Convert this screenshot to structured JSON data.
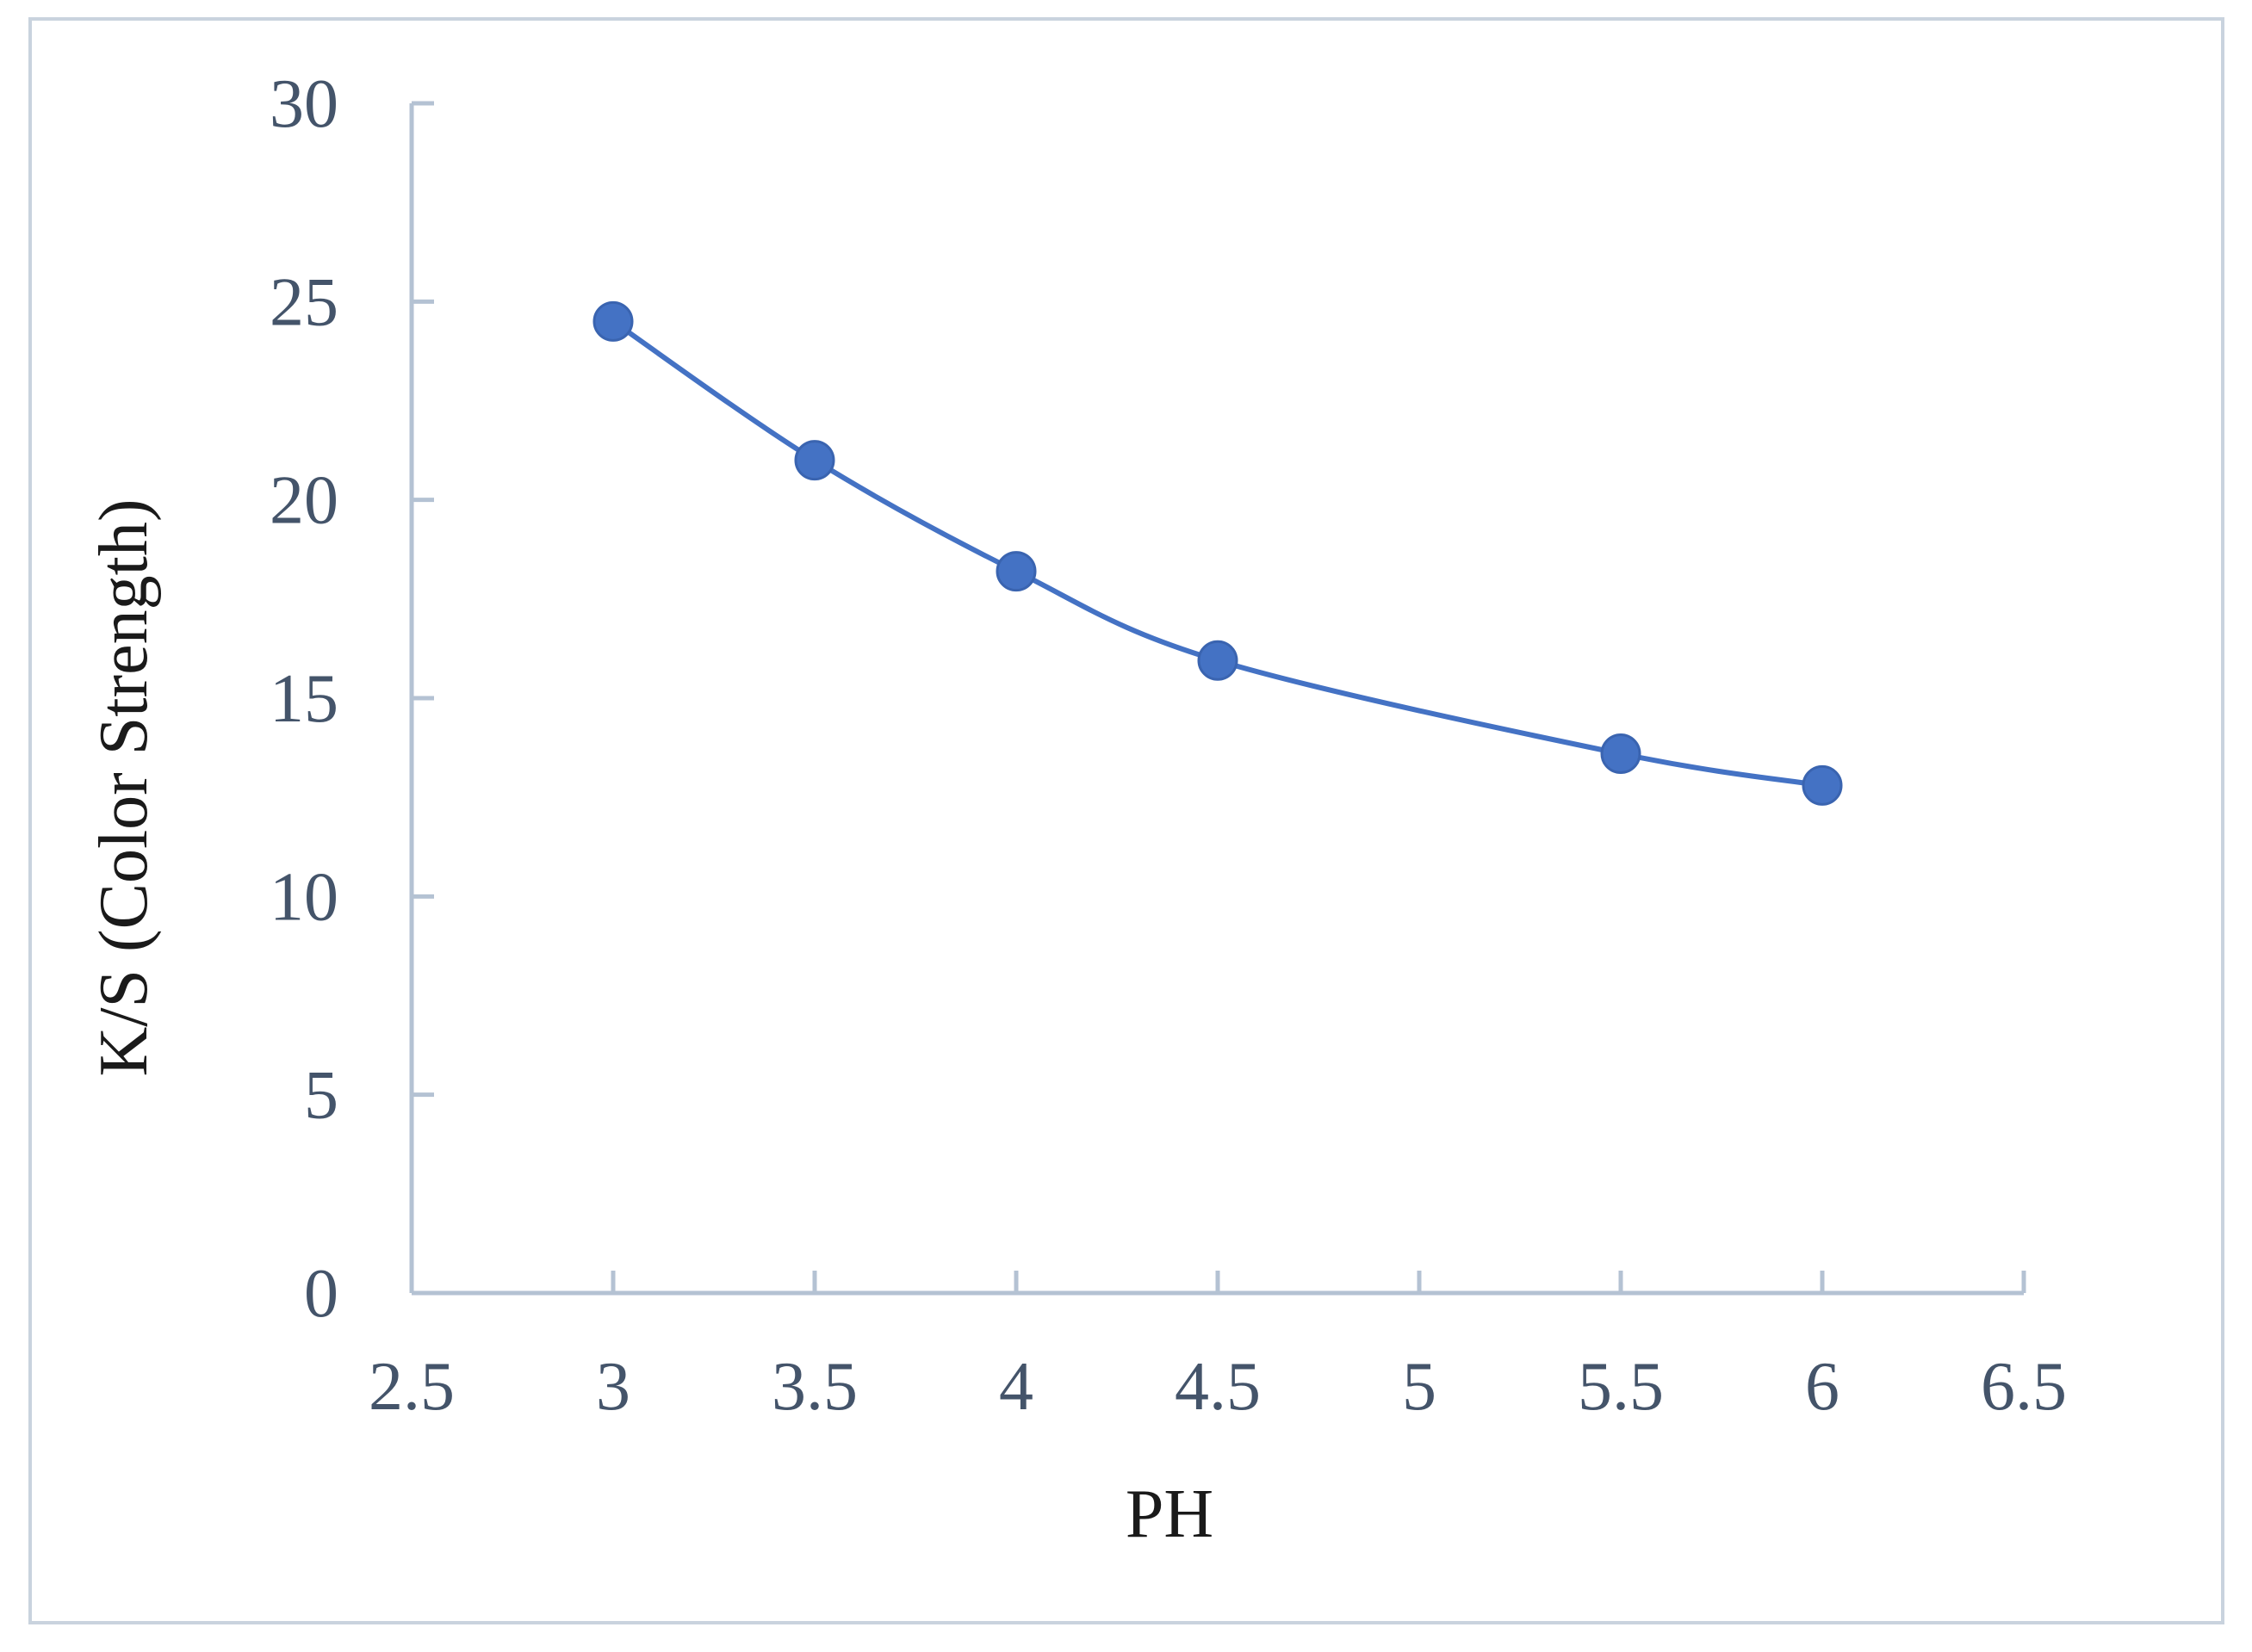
{
  "chart_data": {
    "type": "scatter",
    "title": "",
    "xlabel": "PH",
    "ylabel": "K/S (Color Strength)",
    "xlim": [
      2.5,
      6.5
    ],
    "ylim": [
      0,
      30
    ],
    "x_ticks": [
      "2.5",
      "3",
      "3.5",
      "4",
      "4.5",
      "5",
      "5.5",
      "6",
      "6.5"
    ],
    "y_ticks": [
      "0",
      "5",
      "10",
      "15",
      "20",
      "25",
      "30"
    ],
    "grid": false,
    "legend": "none",
    "smooth_line": true,
    "series": [
      {
        "x": [
          3,
          3.5,
          4,
          4.5,
          5.5,
          6
        ],
        "y": [
          24.5,
          21.0,
          18.2,
          15.95,
          13.6,
          12.8
        ],
        "color": "#4472c4"
      }
    ],
    "colors": {
      "series": "#4472c4",
      "axis": "#b4c2d3",
      "tick_text": "#44546a",
      "title_text": "#1a1a1a",
      "frame": "#c9d3de"
    }
  }
}
